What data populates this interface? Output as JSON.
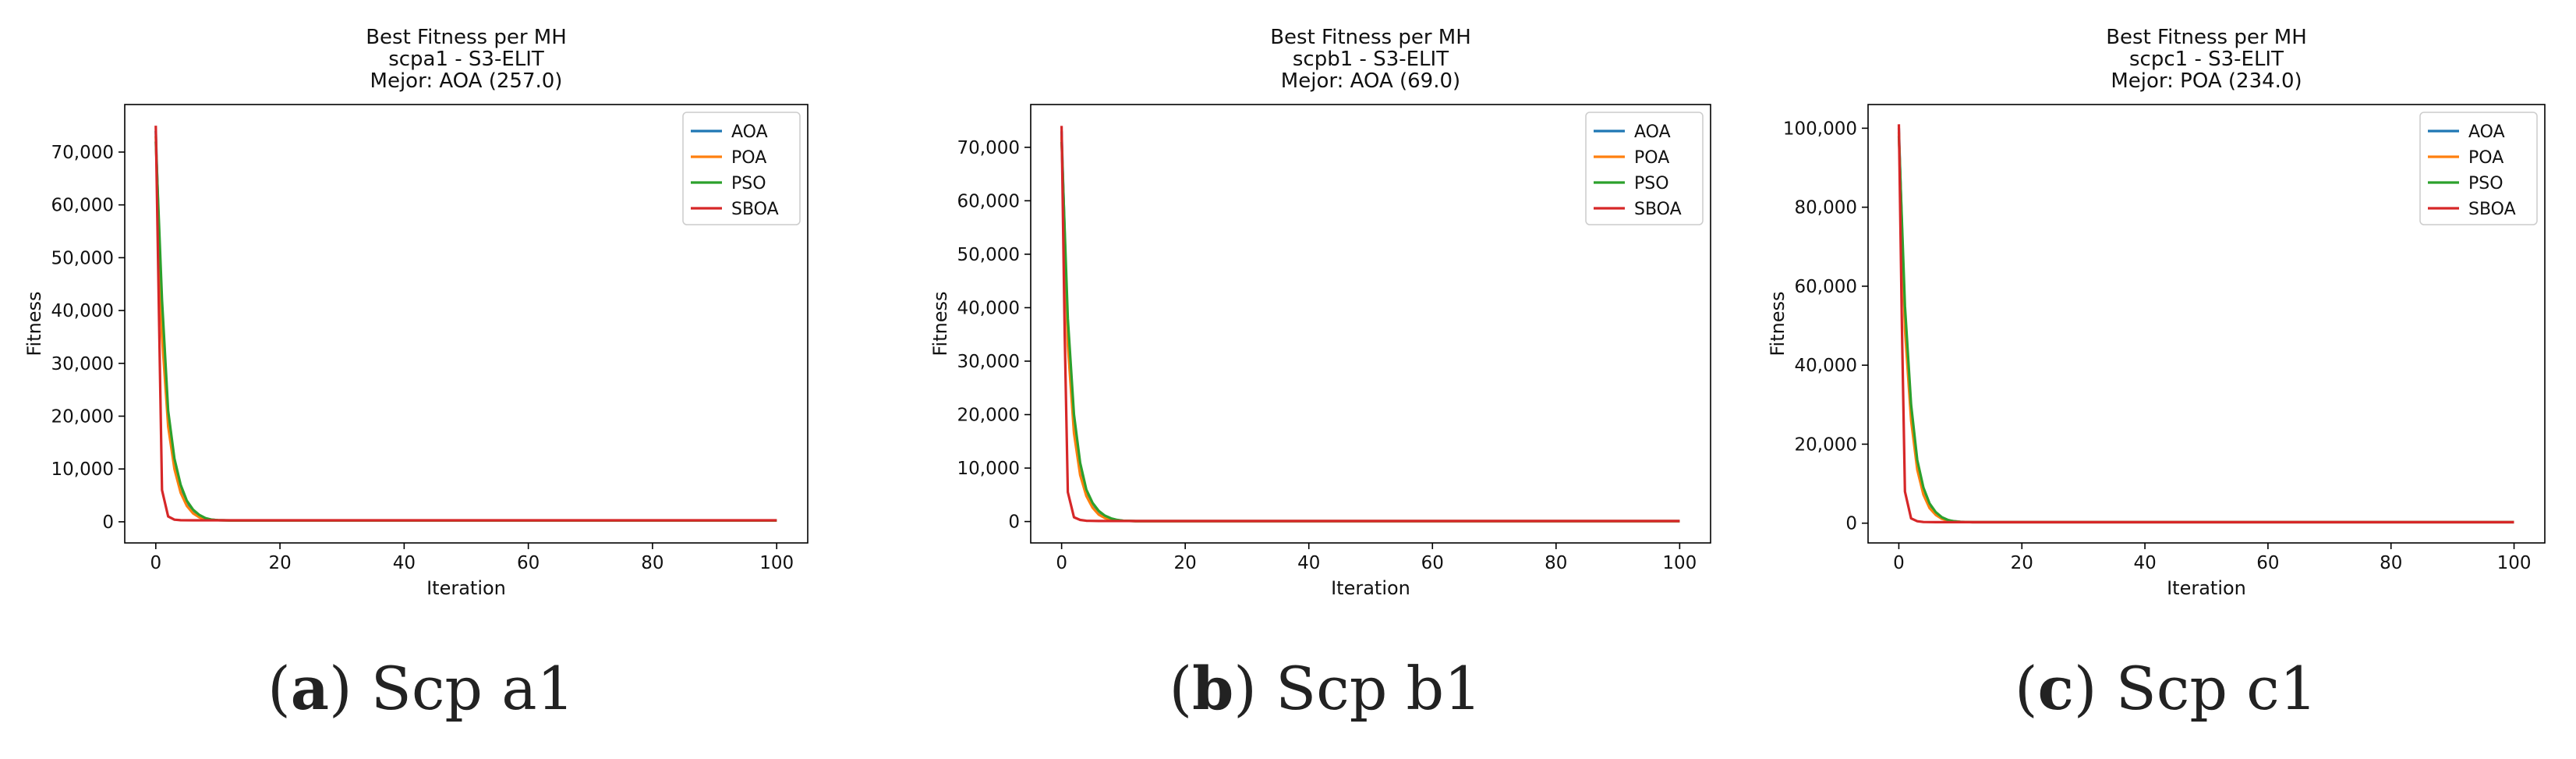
{
  "chart_data": [
    {
      "type": "line",
      "title": "Best Fitness per MH",
      "subtitle": "scpa1 - S3-ELIT",
      "best_label": "Mejor: AOA (257.0)",
      "xlabel": "Iteration",
      "ylabel": "Fitness",
      "xlim": [
        -5,
        105
      ],
      "ylim": [
        -4000,
        79000
      ],
      "xticks": [
        0,
        20,
        40,
        60,
        80,
        100
      ],
      "yticks": [
        0,
        10000,
        20000,
        30000,
        40000,
        50000,
        60000,
        70000
      ],
      "ytick_labels": [
        "0",
        "10,000",
        "20,000",
        "30,000",
        "40,000",
        "50,000",
        "60,000",
        "70,000"
      ],
      "legend": [
        "AOA",
        "POA",
        "PSO",
        "SBOA"
      ],
      "legend_position": "top-right",
      "series": [
        {
          "name": "AOA",
          "color": "#1f77b4",
          "x": [
            0,
            1,
            2,
            3,
            4,
            5,
            6,
            7,
            8,
            10,
            12,
            100
          ],
          "y": [
            74000,
            36000,
            19000,
            10500,
            6000,
            3200,
            1700,
            900,
            500,
            300,
            257,
            257
          ]
        },
        {
          "name": "POA",
          "color": "#ff7f0e",
          "x": [
            0,
            1,
            2,
            3,
            4,
            5,
            6,
            7,
            8,
            10,
            12,
            100
          ],
          "y": [
            73000,
            35000,
            18000,
            10000,
            5500,
            3000,
            1600,
            850,
            480,
            300,
            260,
            260
          ]
        },
        {
          "name": "PSO",
          "color": "#2ca02c",
          "x": [
            0,
            1,
            2,
            3,
            4,
            5,
            6,
            7,
            8,
            9,
            10,
            12,
            100
          ],
          "y": [
            72000,
            42000,
            21000,
            12000,
            7000,
            4000,
            2300,
            1300,
            700,
            400,
            300,
            270,
            270
          ]
        },
        {
          "name": "SBOA",
          "color": "#d62728",
          "x": [
            0,
            0.5,
            1,
            2,
            3,
            4,
            6,
            100
          ],
          "y": [
            75000,
            40000,
            6000,
            1000,
            400,
            300,
            280,
            280
          ]
        }
      ]
    },
    {
      "type": "line",
      "title": "Best Fitness per MH",
      "subtitle": "scpb1 - S3-ELIT",
      "best_label": "Mejor: AOA (69.0)",
      "xlabel": "Iteration",
      "ylabel": "Fitness",
      "xlim": [
        -5,
        105
      ],
      "ylim": [
        -4000,
        78000
      ],
      "xticks": [
        0,
        20,
        40,
        60,
        80,
        100
      ],
      "yticks": [
        0,
        10000,
        20000,
        30000,
        40000,
        50000,
        60000,
        70000
      ],
      "ytick_labels": [
        "0",
        "10,000",
        "20,000",
        "30,000",
        "40,000",
        "50,000",
        "60,000",
        "70,000"
      ],
      "legend": [
        "AOA",
        "POA",
        "PSO",
        "SBOA"
      ],
      "legend_position": "top-right",
      "series": [
        {
          "name": "AOA",
          "color": "#1f77b4",
          "x": [
            0,
            1,
            2,
            3,
            4,
            5,
            6,
            7,
            8,
            10,
            12,
            100
          ],
          "y": [
            73000,
            34000,
            17000,
            9000,
            5000,
            2700,
            1400,
            700,
            350,
            150,
            69,
            69
          ]
        },
        {
          "name": "POA",
          "color": "#ff7f0e",
          "x": [
            0,
            1,
            2,
            3,
            4,
            5,
            6,
            7,
            8,
            10,
            12,
            100
          ],
          "y": [
            72000,
            33000,
            16500,
            8700,
            4800,
            2600,
            1300,
            650,
            330,
            150,
            75,
            75
          ]
        },
        {
          "name": "PSO",
          "color": "#2ca02c",
          "x": [
            0,
            1,
            2,
            3,
            4,
            5,
            6,
            7,
            8,
            9,
            10,
            12,
            100
          ],
          "y": [
            71000,
            38000,
            20000,
            11000,
            6000,
            3500,
            2000,
            1100,
            600,
            300,
            150,
            90,
            90
          ]
        },
        {
          "name": "SBOA",
          "color": "#d62728",
          "x": [
            0,
            0.5,
            1,
            2,
            3,
            4,
            6,
            100
          ],
          "y": [
            74000,
            35000,
            5500,
            800,
            300,
            150,
            100,
            100
          ]
        }
      ]
    },
    {
      "type": "line",
      "title": "Best Fitness per MH",
      "subtitle": "scpc1 - S3-ELIT",
      "best_label": "Mejor: POA (234.0)",
      "xlabel": "Iteration",
      "ylabel": "Fitness",
      "xlim": [
        -5,
        105
      ],
      "ylim": [
        -5000,
        106000
      ],
      "xticks": [
        0,
        20,
        40,
        60,
        80,
        100
      ],
      "yticks": [
        0,
        20000,
        40000,
        60000,
        80000,
        100000
      ],
      "ytick_labels": [
        "0",
        "20,000",
        "40,000",
        "60,000",
        "80,000",
        "100,000"
      ],
      "legend": [
        "AOA",
        "POA",
        "PSO",
        "SBOA"
      ],
      "legend_position": "top-right",
      "series": [
        {
          "name": "AOA",
          "color": "#1f77b4",
          "x": [
            0,
            1,
            2,
            3,
            4,
            5,
            6,
            7,
            8,
            10,
            12,
            100
          ],
          "y": [
            100000,
            50000,
            27000,
            14000,
            7500,
            4000,
            2200,
            1200,
            650,
            350,
            240,
            240
          ]
        },
        {
          "name": "POA",
          "color": "#ff7f0e",
          "x": [
            0,
            1,
            2,
            3,
            4,
            5,
            6,
            7,
            8,
            10,
            12,
            100
          ],
          "y": [
            99000,
            49000,
            26000,
            13500,
            7200,
            3800,
            2100,
            1100,
            600,
            330,
            234,
            234
          ]
        },
        {
          "name": "PSO",
          "color": "#2ca02c",
          "x": [
            0,
            1,
            2,
            3,
            4,
            5,
            6,
            7,
            8,
            9,
            10,
            12,
            100
          ],
          "y": [
            98000,
            55000,
            30000,
            16000,
            9000,
            5000,
            2800,
            1500,
            800,
            450,
            300,
            250,
            250
          ]
        },
        {
          "name": "SBOA",
          "color": "#d62728",
          "x": [
            0,
            0.5,
            1,
            2,
            3,
            4,
            6,
            100
          ],
          "y": [
            101000,
            50000,
            8000,
            1200,
            500,
            300,
            250,
            250
          ]
        }
      ]
    }
  ],
  "captions": [
    {
      "letter": "a",
      "text": "Scp a1"
    },
    {
      "letter": "b",
      "text": "Scp b1"
    },
    {
      "letter": "c",
      "text": "Scp c1"
    }
  ]
}
